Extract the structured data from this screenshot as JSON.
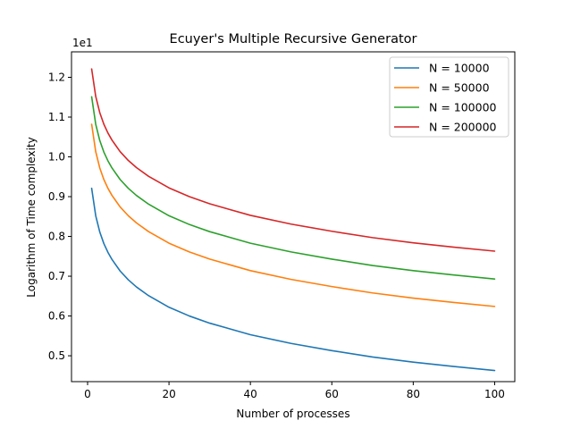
{
  "chart_data": {
    "type": "line",
    "title": "Ecuyer's Multiple Recursive Generator",
    "xlabel": "Number of processes",
    "ylabel": "Logarithm of Time complexity",
    "y_offset_text": "1e1",
    "xlim": [
      -3.95,
      104.95
    ],
    "ylim": [
      0.435,
      1.264
    ],
    "xticks": [
      0,
      20,
      40,
      60,
      80,
      100
    ],
    "xtick_labels": [
      "0",
      "20",
      "40",
      "60",
      "80",
      "100"
    ],
    "yticks": [
      0.5,
      0.6,
      0.7,
      0.8,
      0.9,
      1.0,
      1.1,
      1.2
    ],
    "ytick_labels": [
      "0.5",
      "0.6",
      "0.7",
      "0.8",
      "0.9",
      "1.0",
      "1.1",
      "1.2"
    ],
    "legend_position": "upper right",
    "grid": false,
    "x": [
      1,
      2,
      3,
      4,
      5,
      6,
      8,
      10,
      12,
      15,
      20,
      25,
      30,
      40,
      50,
      60,
      70,
      80,
      90,
      100
    ],
    "series": [
      {
        "name": "N = 10000",
        "color": "#1f77b4",
        "values": [
          0.921,
          0.852,
          0.811,
          0.782,
          0.76,
          0.742,
          0.713,
          0.691,
          0.673,
          0.651,
          0.622,
          0.6,
          0.582,
          0.553,
          0.531,
          0.513,
          0.497,
          0.484,
          0.473,
          0.463
        ]
      },
      {
        "name": "N = 50000",
        "color": "#ff7f0e",
        "values": [
          1.082,
          1.013,
          0.972,
          0.943,
          0.921,
          0.903,
          0.874,
          0.852,
          0.834,
          0.812,
          0.783,
          0.761,
          0.743,
          0.714,
          0.692,
          0.674,
          0.658,
          0.645,
          0.634,
          0.624
        ]
      },
      {
        "name": "N = 100000",
        "color": "#2ca02c",
        "values": [
          1.151,
          1.082,
          1.041,
          1.012,
          0.99,
          0.972,
          0.943,
          0.921,
          0.903,
          0.881,
          0.852,
          0.83,
          0.812,
          0.783,
          0.761,
          0.743,
          0.727,
          0.714,
          0.703,
          0.693
        ]
      },
      {
        "name": "N = 200000",
        "color": "#d62728",
        "values": [
          1.221,
          1.152,
          1.111,
          1.082,
          1.06,
          1.042,
          1.013,
          0.991,
          0.973,
          0.951,
          0.922,
          0.9,
          0.882,
          0.853,
          0.831,
          0.813,
          0.797,
          0.784,
          0.773,
          0.763
        ]
      }
    ]
  }
}
